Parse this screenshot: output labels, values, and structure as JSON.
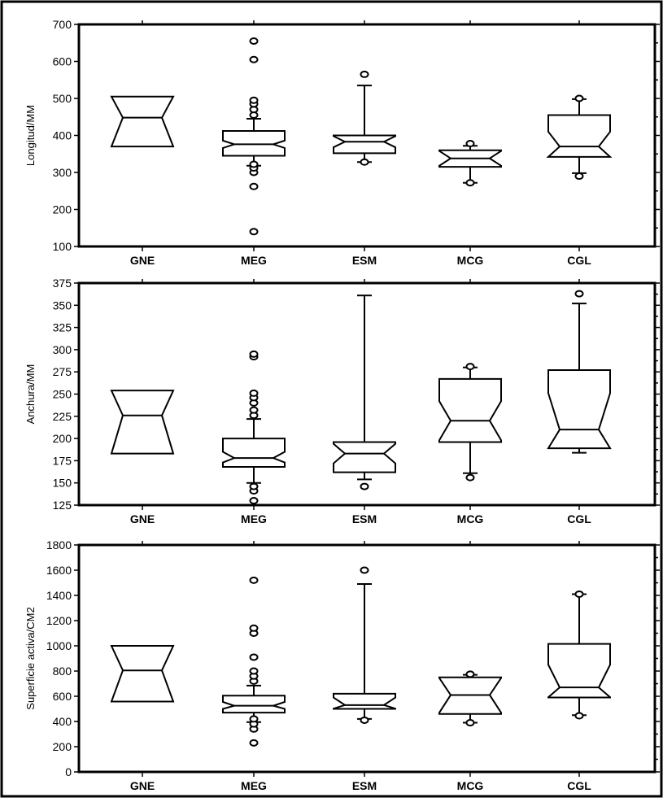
{
  "chart_data": [
    {
      "type": "boxplot",
      "ylabel": "Longitud/MM",
      "ylim": [
        100,
        700
      ],
      "yticks": [
        100,
        200,
        300,
        400,
        500,
        600,
        700
      ],
      "categories": [
        "GNE",
        "MEG",
        "ESM",
        "MCG",
        "CGL"
      ],
      "boxes": [
        {
          "category": "GNE",
          "q1": 370,
          "median": 448,
          "q3": 505,
          "notch_low": 370,
          "notch_high": 505,
          "whisker_low": null,
          "whisker_high": null,
          "outliers": []
        },
        {
          "category": "MEG",
          "q1": 345,
          "median": 376,
          "q3": 412,
          "notch_low": 366,
          "notch_high": 386,
          "whisker_low": 318,
          "whisker_high": 445,
          "outliers": [
            140,
            262,
            300,
            312,
            322,
            455,
            470,
            485,
            495,
            605,
            655
          ]
        },
        {
          "category": "ESM",
          "q1": 352,
          "median": 383,
          "q3": 400,
          "notch_low": 368,
          "notch_high": 398,
          "whisker_low": 328,
          "whisker_high": 535,
          "outliers": [
            328,
            565
          ]
        },
        {
          "category": "MCG",
          "q1": 315,
          "median": 338,
          "q3": 360,
          "notch_low": 318,
          "notch_high": 358,
          "whisker_low": 272,
          "whisker_high": 372,
          "outliers": [
            272,
            378
          ]
        },
        {
          "category": "CGL",
          "q1": 342,
          "median": 370,
          "q3": 455,
          "notch_low": 342,
          "notch_high": 410,
          "whisker_low": 298,
          "whisker_high": 498,
          "outliers": [
            290,
            500
          ]
        }
      ]
    },
    {
      "type": "boxplot",
      "ylabel": "Anchura/MM",
      "ylim": [
        125,
        375
      ],
      "yticks": [
        125,
        150,
        175,
        200,
        225,
        250,
        275,
        300,
        325,
        350,
        375
      ],
      "categories": [
        "GNE",
        "MEG",
        "ESM",
        "MCG",
        "CGL"
      ],
      "boxes": [
        {
          "category": "GNE",
          "q1": 183,
          "median": 226,
          "q3": 254,
          "notch_low": 183,
          "notch_high": 254,
          "whisker_low": null,
          "whisker_high": null,
          "outliers": []
        },
        {
          "category": "MEG",
          "q1": 168,
          "median": 178,
          "q3": 200,
          "notch_low": 173,
          "notch_high": 185,
          "whisker_low": 150,
          "whisker_high": 222,
          "outliers": [
            130,
            141,
            146,
            226,
            232,
            240,
            246,
            251,
            292,
            295
          ]
        },
        {
          "category": "ESM",
          "q1": 162,
          "median": 183,
          "q3": 196,
          "notch_low": 172,
          "notch_high": 194,
          "whisker_low": 154,
          "whisker_high": 361,
          "outliers": [
            146
          ]
        },
        {
          "category": "MCG",
          "q1": 196,
          "median": 220,
          "q3": 267,
          "notch_low": 198,
          "notch_high": 242,
          "whisker_low": 161,
          "whisker_high": 280,
          "outliers": [
            156,
            281
          ]
        },
        {
          "category": "CGL",
          "q1": 189,
          "median": 210,
          "q3": 277,
          "notch_low": 189,
          "notch_high": 251,
          "whisker_low": 184,
          "whisker_high": 352,
          "outliers": [
            363
          ]
        }
      ]
    },
    {
      "type": "boxplot",
      "ylabel": "Superficie activa/CM2",
      "ylim": [
        0,
        1800
      ],
      "yticks": [
        0,
        200,
        400,
        600,
        800,
        1000,
        1200,
        1400,
        1600,
        1800
      ],
      "categories": [
        "GNE",
        "MEG",
        "ESM",
        "MCG",
        "CGL"
      ],
      "boxes": [
        {
          "category": "GNE",
          "q1": 558,
          "median": 805,
          "q3": 1000,
          "notch_low": 558,
          "notch_high": 1000,
          "whisker_low": null,
          "whisker_high": null,
          "outliers": []
        },
        {
          "category": "MEG",
          "q1": 470,
          "median": 525,
          "q3": 605,
          "notch_low": 500,
          "notch_high": 555,
          "whisker_low": 395,
          "whisker_high": 685,
          "outliers": [
            230,
            340,
            380,
            420,
            720,
            760,
            800,
            910,
            1100,
            1140,
            1520
          ]
        },
        {
          "category": "ESM",
          "q1": 500,
          "median": 530,
          "q3": 620,
          "notch_low": 502,
          "notch_high": 590,
          "whisker_low": 420,
          "whisker_high": 1490,
          "outliers": [
            410,
            1600
          ]
        },
        {
          "category": "MCG",
          "q1": 460,
          "median": 610,
          "q3": 750,
          "notch_low": 470,
          "notch_high": 745,
          "whisker_low": 390,
          "whisker_high": 770,
          "outliers": [
            390,
            775
          ]
        },
        {
          "category": "CGL",
          "q1": 590,
          "median": 670,
          "q3": 1015,
          "notch_low": 592,
          "notch_high": 850,
          "whisker_low": 450,
          "whisker_high": 1410,
          "outliers": [
            445,
            1410
          ]
        }
      ]
    }
  ]
}
